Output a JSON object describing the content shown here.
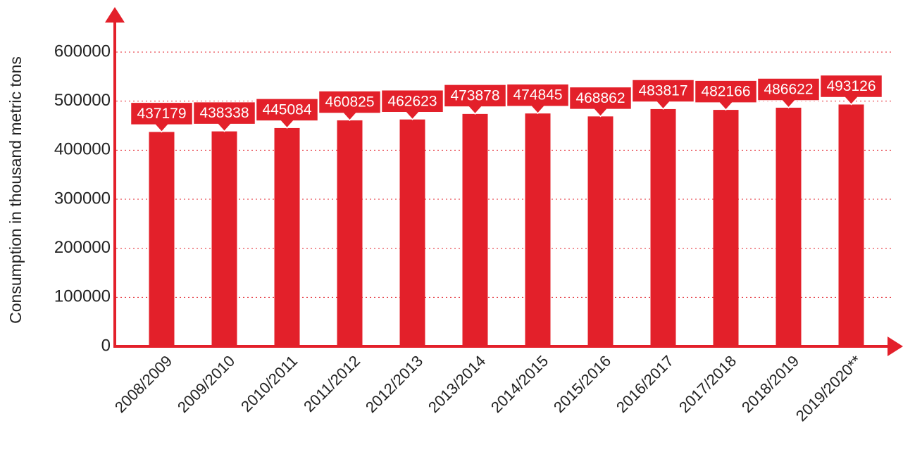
{
  "chart_data": {
    "type": "bar",
    "y_label": "Consumption in thousand metric tons",
    "categories": [
      "2008/2009",
      "2009/2010",
      "2010/2011",
      "2011/2012",
      "2012/2013",
      "2013/2014",
      "2014/2015",
      "2015/2016",
      "2016/2017",
      "2017/2018",
      "2018/2019",
      "2019/2020**"
    ],
    "values": [
      437179,
      438338,
      445084,
      460825,
      462623,
      473878,
      474845,
      468862,
      483817,
      482166,
      486622,
      493126
    ],
    "color": "#e3202a",
    "ylim": [
      0,
      600000
    ],
    "yticks": [
      0,
      100000,
      200000,
      300000,
      400000,
      500000,
      600000
    ],
    "grid": true
  }
}
